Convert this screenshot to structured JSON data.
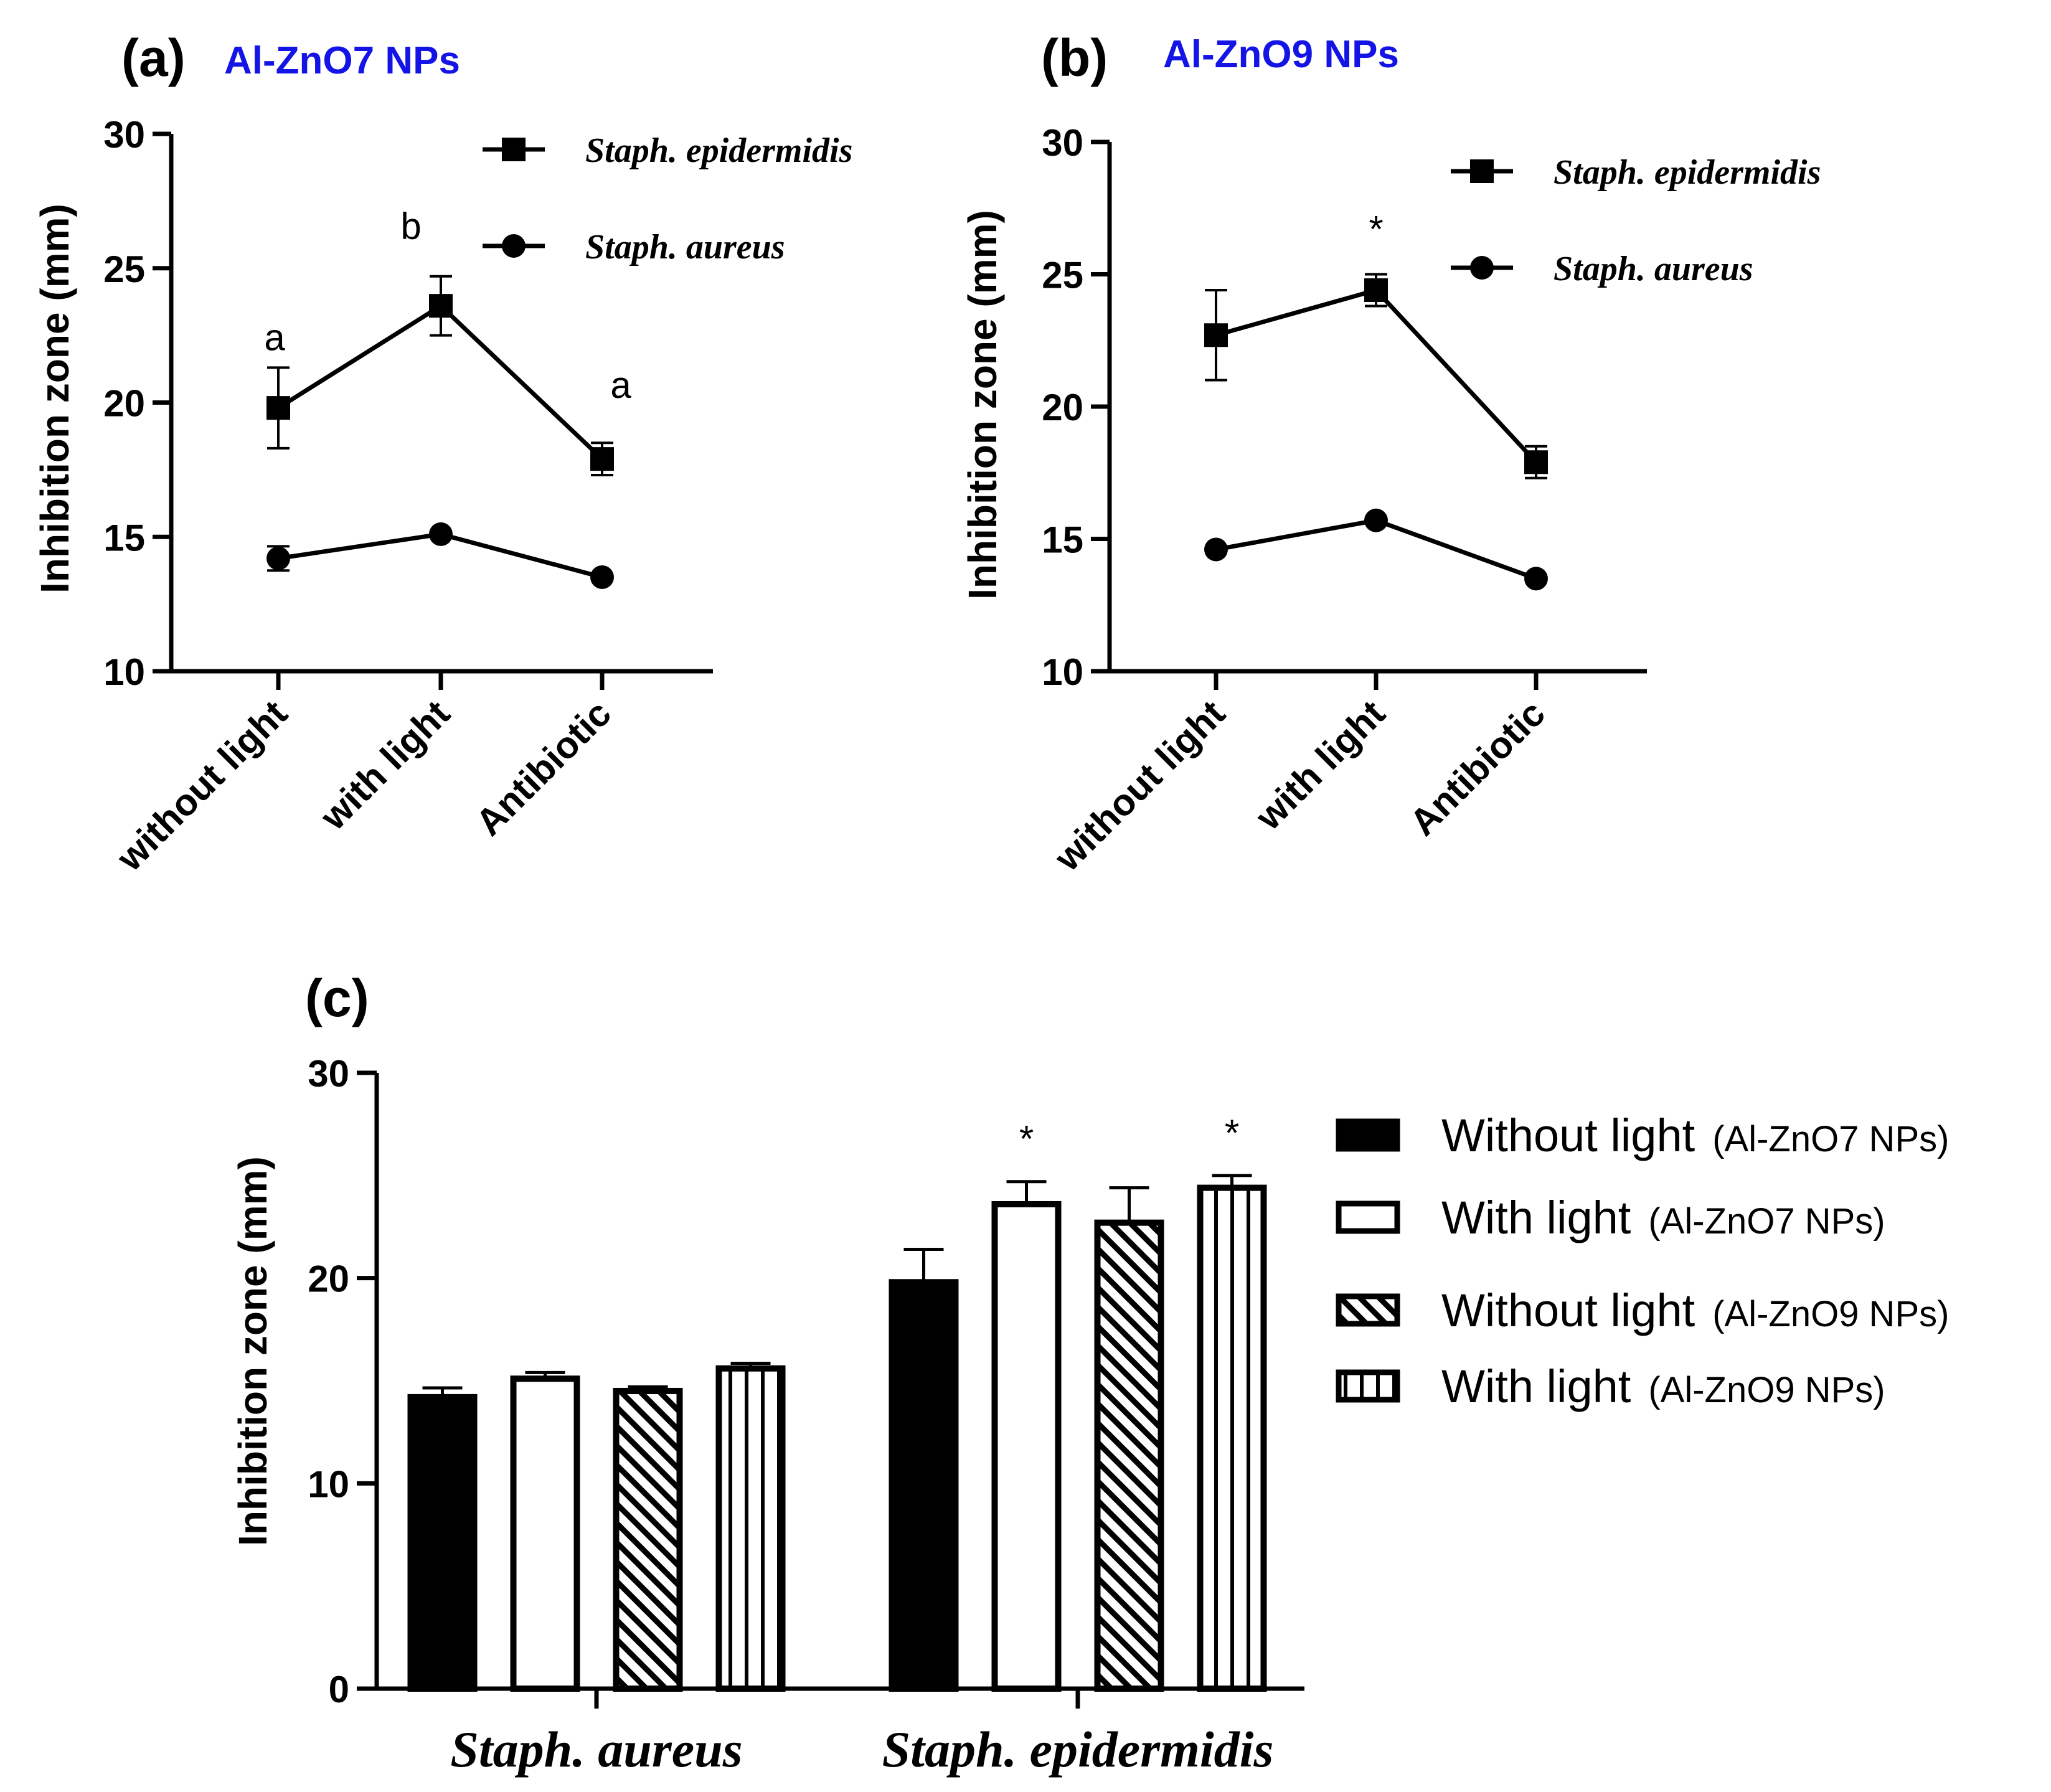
{
  "colors": {
    "title": "#1414e6",
    "ink": "#000000",
    "paper": "#ffffff"
  },
  "panels": [
    {
      "label": "(a)",
      "title": "Al-ZnO7 NPs"
    },
    {
      "label": "(b)",
      "title": "Al-ZnO9 NPs"
    },
    {
      "label": "(c)",
      "title": ""
    }
  ],
  "chart_data": [
    {
      "type": "line",
      "panel": "(a)",
      "title": "Al-ZnO7 NPs",
      "ylabel": "Inhibition zone  (mm)",
      "xlabel": "",
      "categories": [
        "without light",
        "with light",
        "Antibiotic"
      ],
      "ylim": [
        10,
        30
      ],
      "yticks": [
        10,
        15,
        20,
        25,
        30
      ],
      "legend_position": "top-right",
      "series": [
        {
          "name": "Staph. epidermidis",
          "marker": "square",
          "values": [
            19.8,
            23.6,
            17.9
          ],
          "errors": [
            1.5,
            1.1,
            0.6
          ],
          "annotations": [
            "a",
            "b",
            "a"
          ]
        },
        {
          "name": "Staph. aureus",
          "marker": "circle",
          "values": [
            14.2,
            15.1,
            13.5
          ],
          "errors": [
            0.45,
            0.2,
            0.15
          ]
        }
      ]
    },
    {
      "type": "line",
      "panel": "(b)",
      "title": "Al-ZnO9 NPs",
      "ylabel": "Inhibition zone  (mm)",
      "xlabel": "",
      "categories": [
        "without light",
        "with light",
        "Antibiotic"
      ],
      "ylim": [
        10,
        30
      ],
      "yticks": [
        10,
        15,
        20,
        25,
        30
      ],
      "legend_position": "top-right",
      "series": [
        {
          "name": "Staph. epidermidis",
          "marker": "square",
          "values": [
            22.7,
            24.4,
            17.9
          ],
          "errors": [
            1.7,
            0.6,
            0.6
          ],
          "annotations": [
            "",
            "*",
            ""
          ]
        },
        {
          "name": "Staph. aureus",
          "marker": "circle",
          "values": [
            14.6,
            15.7,
            13.5
          ],
          "errors": [
            0.15,
            0.15,
            0.15
          ]
        }
      ]
    },
    {
      "type": "bar",
      "panel": "(c)",
      "title": "",
      "ylabel": "Inhibition zone  (mm)",
      "xlabel": "",
      "categories": [
        "Staph. aureus",
        "Staph. epidermidis"
      ],
      "ylim": [
        0,
        30
      ],
      "yticks": [
        0,
        10,
        20,
        30
      ],
      "legend_position": "right",
      "series": [
        {
          "name": "Without light",
          "suffix": "(Al-ZnO7 NPs)",
          "pattern": "solid",
          "values": [
            14.2,
            19.8
          ],
          "errors": [
            0.45,
            1.6
          ],
          "annotations": [
            "",
            ""
          ]
        },
        {
          "name": "With light",
          "suffix": "(Al-ZnO7 NPs)",
          "pattern": "open",
          "values": [
            15.1,
            23.6
          ],
          "errors": [
            0.3,
            1.1
          ],
          "annotations": [
            "",
            "*"
          ]
        },
        {
          "name": "Without light",
          "suffix": "(Al-ZnO9 NPs)",
          "pattern": "diagonal",
          "values": [
            14.5,
            22.7
          ],
          "errors": [
            0.2,
            1.7
          ],
          "annotations": [
            "",
            ""
          ]
        },
        {
          "name": "With light",
          "suffix": "(Al-ZnO9 NPs)",
          "pattern": "vertical",
          "values": [
            15.6,
            24.4
          ],
          "errors": [
            0.25,
            0.6
          ],
          "annotations": [
            "",
            "*"
          ]
        }
      ]
    }
  ]
}
